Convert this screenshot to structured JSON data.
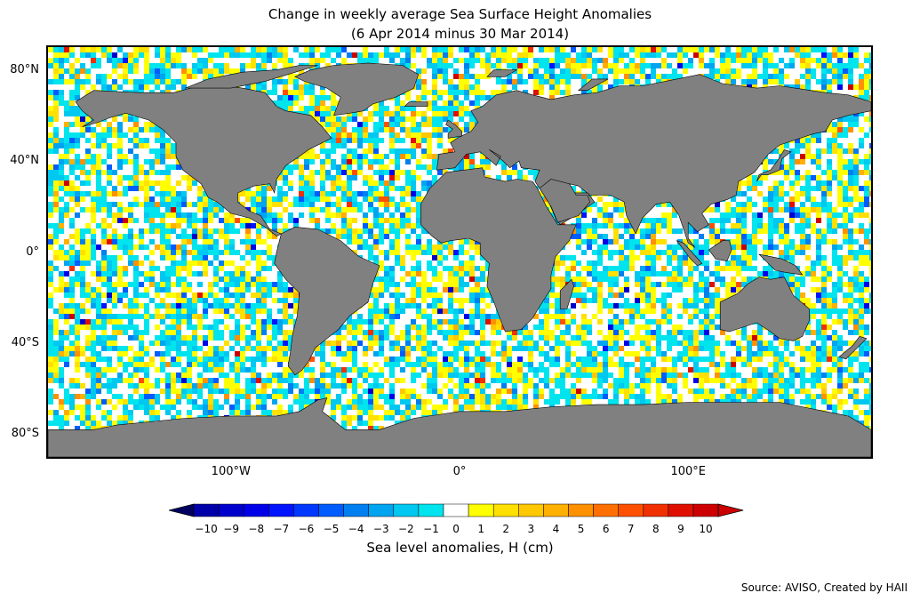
{
  "title_line1": "Change in weekly average Sea Surface Height Anomalies",
  "title_line2": "(6 Apr 2014 minus 30 Mar 2014)",
  "map": {
    "projection": "equirectangular",
    "lon_range": [
      -180,
      180
    ],
    "lat_range": [
      -90,
      90
    ],
    "land_color": "#808080",
    "coastline_color": "#000000",
    "lat_labels": [
      {
        "lat": 80,
        "text": "80°N"
      },
      {
        "lat": 40,
        "text": "40°N"
      },
      {
        "lat": 0,
        "text": "0°"
      },
      {
        "lat": -40,
        "text": "40°S"
      },
      {
        "lat": -80,
        "text": "80°S"
      }
    ],
    "lon_labels": [
      {
        "lon": -100,
        "text": "100°W"
      },
      {
        "lon": 0,
        "text": "0°"
      },
      {
        "lon": 100,
        "text": "100°E"
      }
    ]
  },
  "colorbar": {
    "label": "Sea level anomalies, H (cm)",
    "ticks": [
      "−10",
      "−9",
      "−8",
      "−7",
      "−6",
      "−5",
      "−4",
      "−3",
      "−2",
      "−1",
      "0",
      "1",
      "2",
      "3",
      "4",
      "5",
      "6",
      "7",
      "8",
      "9",
      "10"
    ],
    "extend": "both",
    "colors": [
      "#00007f",
      "#0000a8",
      "#0000cc",
      "#0000e8",
      "#0014ff",
      "#0038ff",
      "#005cff",
      "#0080f0",
      "#00a4f0",
      "#00c8f0",
      "#00e4ee",
      "#ffffff",
      "#ffff00",
      "#ffe000",
      "#ffc800",
      "#ffb000",
      "#ff9000",
      "#ff7000",
      "#ff5000",
      "#f03000",
      "#e01000",
      "#cc0000"
    ],
    "under_color": "#000060",
    "over_color": "#cc0000"
  },
  "source": "Source: AVISO, Created by HAII"
}
